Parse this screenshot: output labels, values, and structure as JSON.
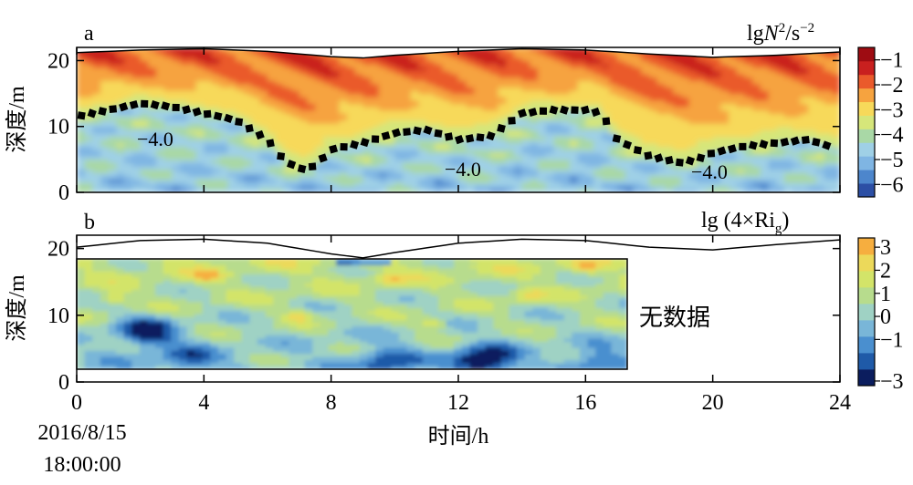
{
  "chart_data": [
    {
      "type": "heatmap",
      "panel_label": "a",
      "colorbar_label_base": "lg",
      "colorbar_label_var": "N",
      "colorbar_label_exp": "2",
      "colorbar_label_unit": "/s",
      "colorbar_label_unit_exp": "−2",
      "ylabel": "深度/m",
      "xlim": [
        0,
        24
      ],
      "ylim": [
        0,
        22
      ],
      "yticks": [
        "0",
        "10",
        "20"
      ],
      "colorbar_ticks": [
        "−1",
        "−2",
        "−3",
        "−4",
        "−5",
        "−6"
      ],
      "colorbar_range": [
        -6.5,
        -0.5
      ],
      "colorbar_colors": [
        "#2c4fa5",
        "#4d86cc",
        "#7fb5e3",
        "#9fd0e6",
        "#a9d8a6",
        "#d6e67a",
        "#f7d95a",
        "#f6a33f",
        "#ea5a2b",
        "#c9201f",
        "#9e0c12"
      ],
      "contour_labels": [
        "−4.0",
        "−4.0",
        "−4.0"
      ],
      "contour_minus4_x": [
        0,
        1,
        2,
        3,
        4,
        5,
        6,
        6.5,
        7,
        7.5,
        8,
        9,
        10,
        11,
        12,
        13,
        14,
        15,
        16,
        16.5,
        17,
        18,
        19,
        19.5,
        20,
        21,
        22,
        23,
        24
      ],
      "contour_minus4_y": [
        11.5,
        12.5,
        13.5,
        13,
        12,
        11,
        8,
        5,
        3.5,
        4,
        6.5,
        7.5,
        9,
        9.5,
        8,
        8.5,
        12,
        12.5,
        12.5,
        12,
        8,
        5.5,
        4.5,
        5,
        6,
        7,
        7.5,
        8,
        6.5
      ],
      "surface_x": [
        0,
        2,
        4,
        6,
        8,
        9,
        10,
        12,
        14,
        16,
        18,
        20,
        22,
        24
      ],
      "surface_y": [
        21.2,
        21.6,
        21.8,
        21.4,
        20.6,
        20.4,
        20.8,
        21.4,
        21.8,
        21.6,
        21.0,
        20.5,
        20.8,
        21.3
      ]
    },
    {
      "type": "heatmap",
      "panel_label": "b",
      "colorbar_label_base": "lg (4×Ri",
      "colorbar_label_sub": "g",
      "colorbar_label_close": ")",
      "ylabel": "深度/m",
      "xlabel": "时间/h",
      "xticks": [
        "0",
        "4",
        "8",
        "12",
        "16",
        "20",
        "24"
      ],
      "yticks": [
        "0",
        "10",
        "20"
      ],
      "xlim": [
        0,
        24
      ],
      "ylim": [
        0,
        22
      ],
      "data_x_end": 17.3,
      "no_data_text": "无数据",
      "colorbar_ticks": [
        "3",
        "2",
        "1",
        "0",
        "−1",
        "−3"
      ],
      "colorbar_range": [
        -3,
        3.4
      ],
      "colorbar_colors": [
        "#0b1d5e",
        "#1f5aa8",
        "#4a8fcf",
        "#79b6d8",
        "#9fd2c4",
        "#b7dc8d",
        "#d3e469",
        "#ecd95a",
        "#f6ae3f"
      ],
      "surface_x": [
        0,
        2,
        4,
        6,
        8,
        9,
        10,
        12,
        14,
        16,
        18,
        20,
        22,
        24
      ],
      "surface_y": [
        20.2,
        21.2,
        21.4,
        20.8,
        19.2,
        18.6,
        19.4,
        20.8,
        21.4,
        21.2,
        20.2,
        19.8,
        20.6,
        21.3
      ]
    }
  ],
  "start_time_date": "2016/8/15",
  "start_time_clock": "18:00:00"
}
